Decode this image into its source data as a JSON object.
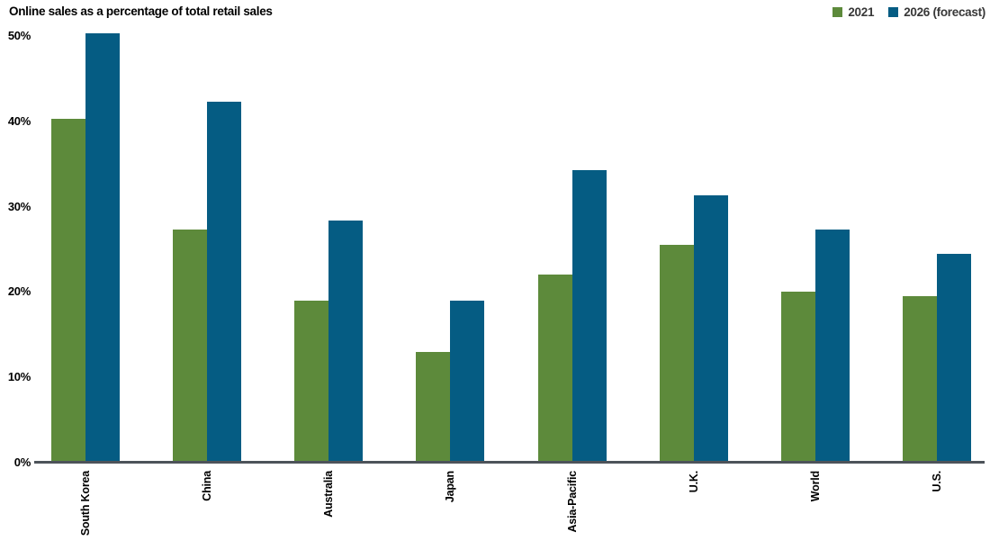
{
  "title": "Online sales as a percentage of total retail sales",
  "colors": {
    "background": "#ffffff",
    "axis_line": "#4d535a",
    "title_text": "#000000",
    "tick_text": "#000000",
    "legend_text": "#383838"
  },
  "chart_data": {
    "type": "bar",
    "title": "Online sales as a percentage of total retail sales",
    "categories": [
      "South Korea",
      "China",
      "Australia",
      "Japan",
      "Asia-Pacific",
      "U.K.",
      "World",
      "U.S."
    ],
    "series": [
      {
        "name": "2021",
        "color": "#5d8a3b",
        "values": [
          40.3,
          27.3,
          19.0,
          13.0,
          22.0,
          25.5,
          20.0,
          19.5
        ]
      },
      {
        "name": "2026 (forecast)",
        "color": "#055c83",
        "values": [
          50.3,
          42.3,
          28.4,
          19.0,
          34.3,
          31.3,
          27.3,
          24.5
        ]
      }
    ],
    "xlabel": "",
    "ylabel": "",
    "ylim": [
      0,
      50
    ],
    "yticks": [
      0,
      10,
      20,
      30,
      40,
      50
    ],
    "ytick_format": "{v}%",
    "grid": false,
    "legend_position": "top-right",
    "x_tick_label_rotation": 90
  }
}
